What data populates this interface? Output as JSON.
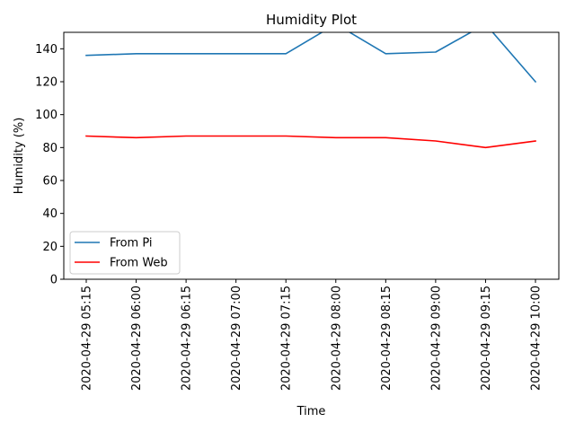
{
  "chart_data": {
    "type": "line",
    "title": "Humidity Plot",
    "xlabel": "Time",
    "ylabel": "Humidity (%)",
    "categories": [
      "2020-04-29 05:15",
      "2020-04-29 06:00",
      "2020-04-29 06:15",
      "2020-04-29 07:00",
      "2020-04-29 07:15",
      "2020-04-29 08:00",
      "2020-04-29 08:15",
      "2020-04-29 09:00",
      "2020-04-29 09:15",
      "2020-04-29 10:00"
    ],
    "series": [
      {
        "name": "From Pi",
        "color": "#1f77b4",
        "values": [
          136,
          137,
          137,
          137,
          137,
          155,
          137,
          138,
          155,
          120
        ]
      },
      {
        "name": "From Web",
        "color": "#ff0000",
        "values": [
          87,
          86,
          87,
          87,
          87,
          86,
          86,
          84,
          80,
          84
        ]
      }
    ],
    "ylim": [
      0,
      150
    ],
    "yticks": [
      0,
      20,
      40,
      60,
      80,
      100,
      120,
      140
    ],
    "grid": false,
    "legend_position": "lower-left"
  }
}
